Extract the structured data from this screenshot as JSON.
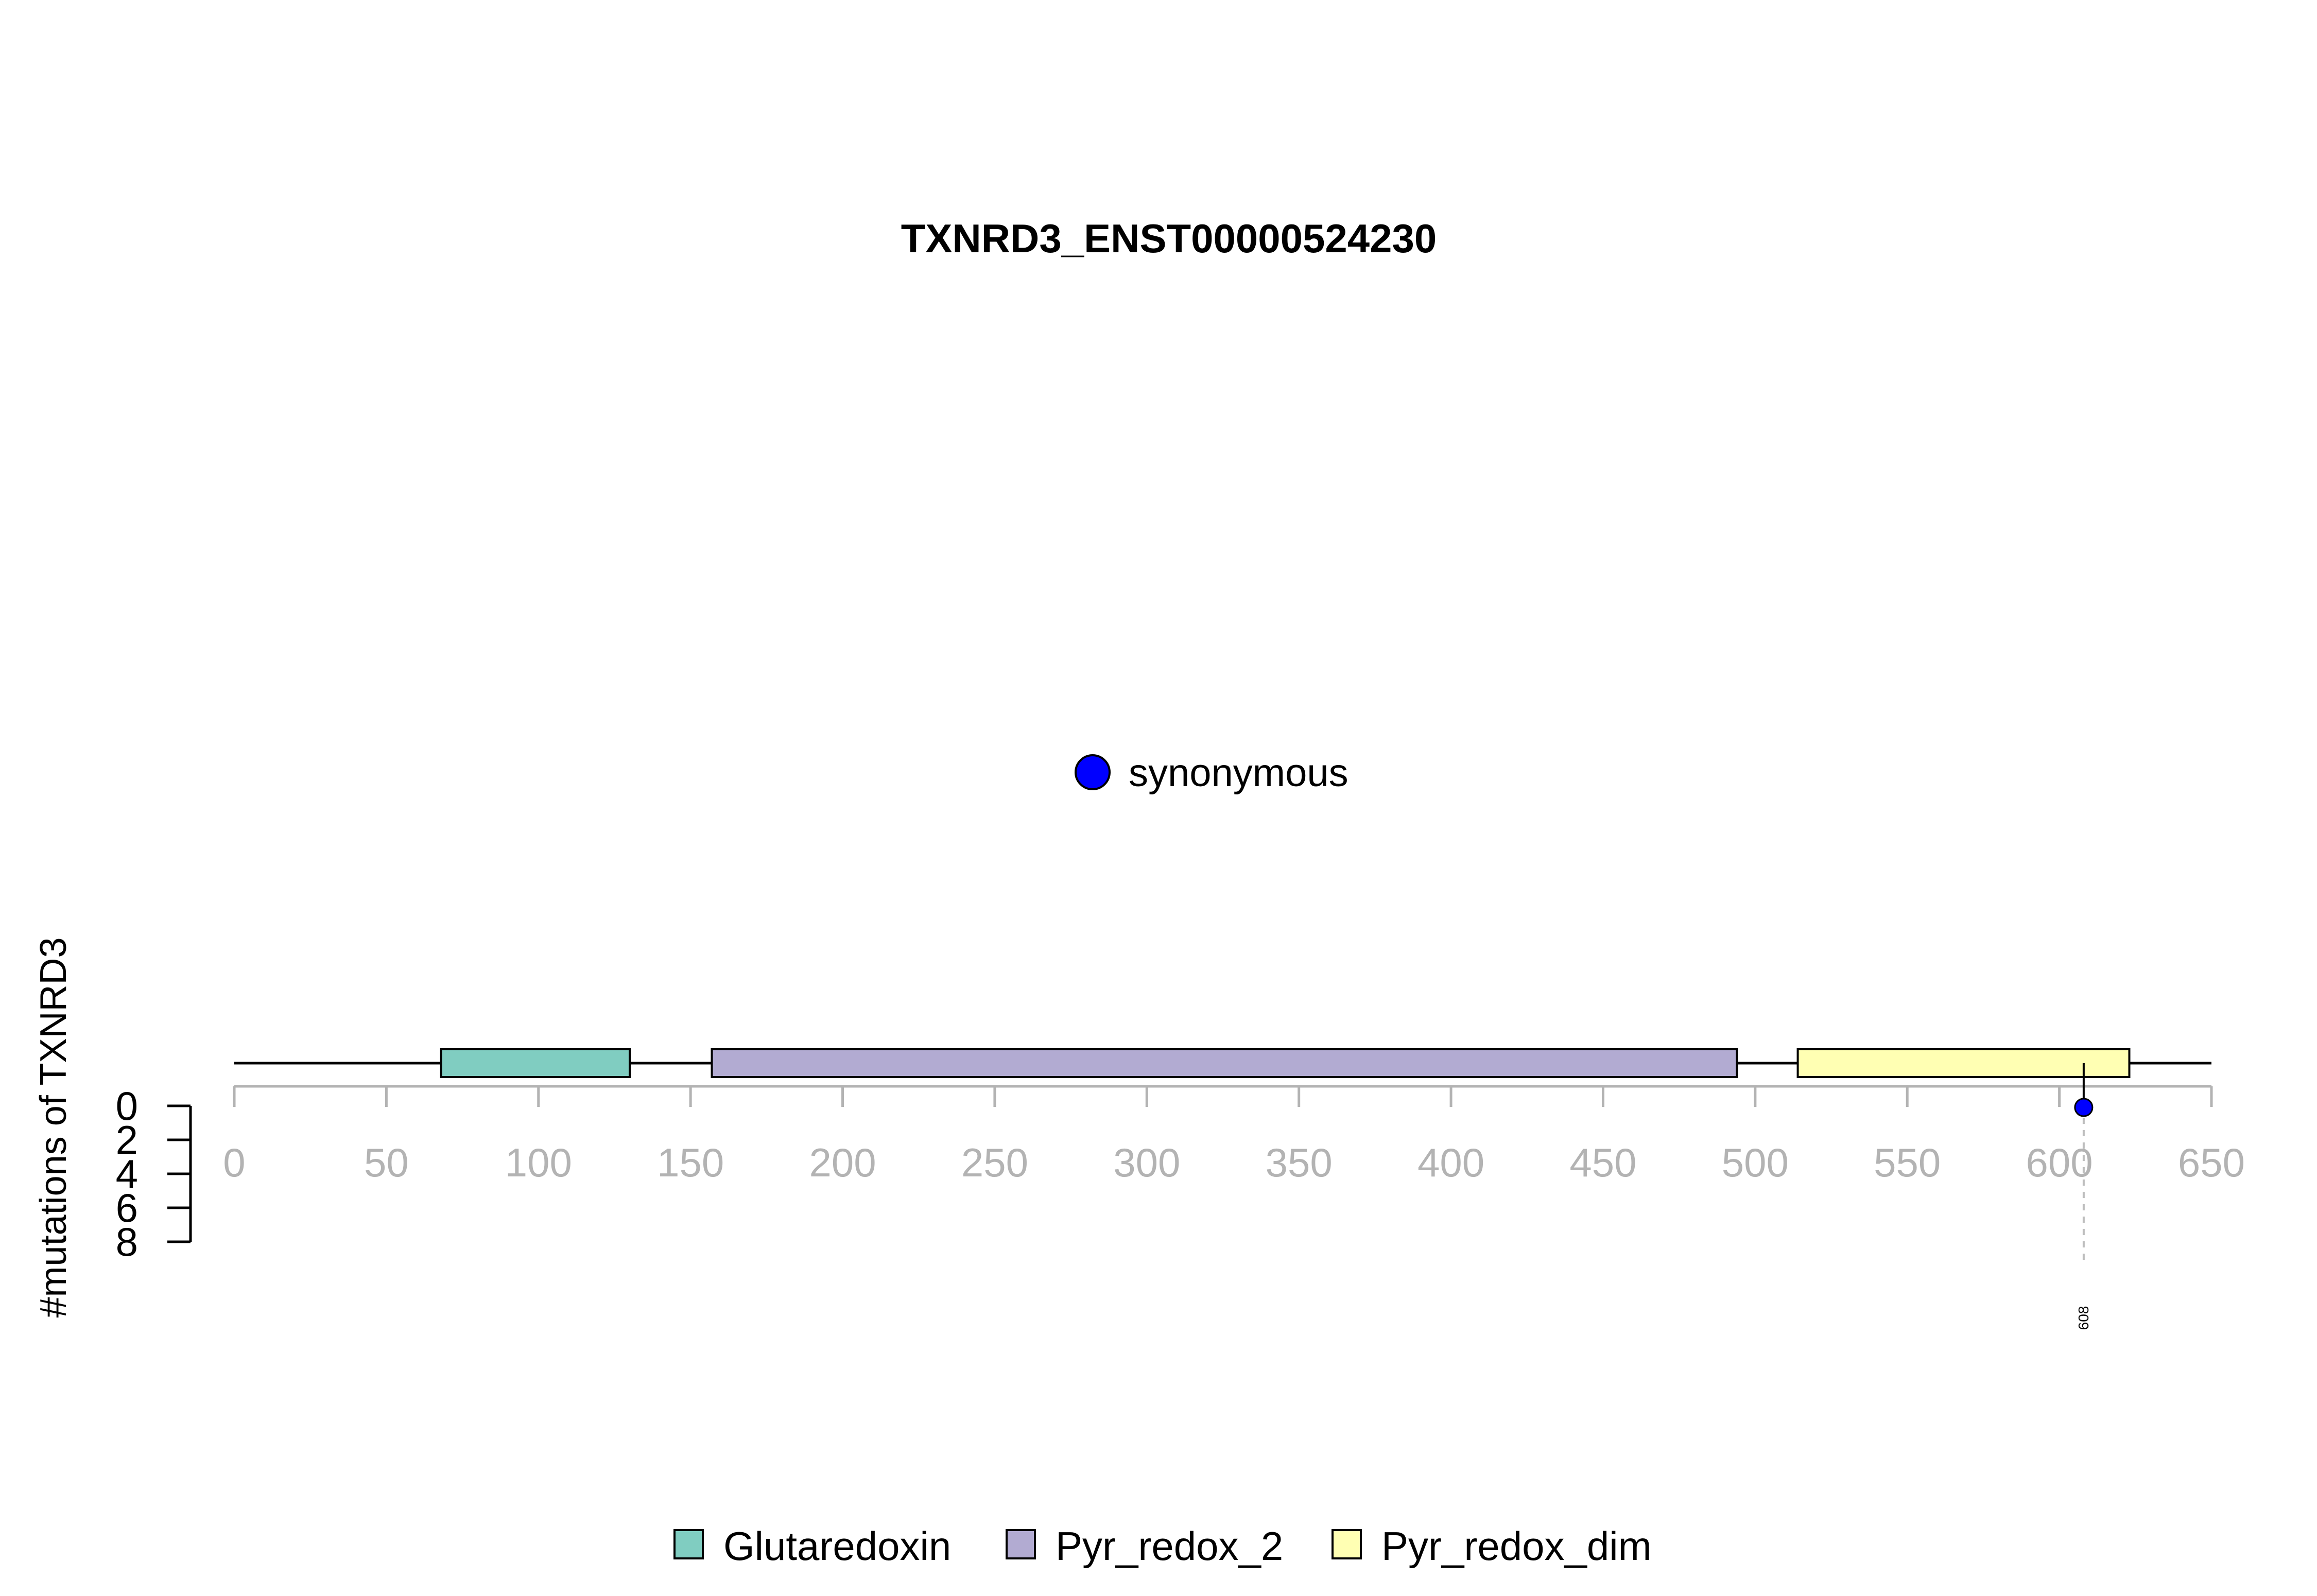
{
  "chart_data": {
    "type": "lollipop",
    "title": "TXNRD3_ENST00000524230",
    "ylabel": "#mutations of TXNRD3",
    "x_ticks": [
      0,
      50,
      100,
      150,
      200,
      250,
      300,
      350,
      400,
      450,
      500,
      550,
      600,
      650
    ],
    "x_range": [
      0,
      650
    ],
    "y_ticks": [
      0,
      2,
      4,
      6,
      8
    ],
    "y_range": [
      0,
      8
    ],
    "protein_length": 650,
    "domains": [
      {
        "name": "Glutaredoxin",
        "start": 68,
        "end": 130,
        "color": "#80cdc1"
      },
      {
        "name": "Pyr_redox_2",
        "start": 157,
        "end": 494,
        "color": "#b2abd2"
      },
      {
        "name": "Pyr_redox_dim",
        "start": 514,
        "end": 623,
        "color": "#ffffb3"
      }
    ],
    "mutations": [
      {
        "position": 608,
        "count": 1,
        "type": "synonymous",
        "label": "608",
        "color": "#0000ff"
      }
    ],
    "mutation_legend": [
      {
        "type": "synonymous",
        "color": "#0000ff"
      }
    ],
    "domain_legend": [
      "Glutaredoxin",
      "Pyr_redox_2",
      "Pyr_redox_dim"
    ],
    "legend_placement": "bottom-center",
    "grid": false
  }
}
